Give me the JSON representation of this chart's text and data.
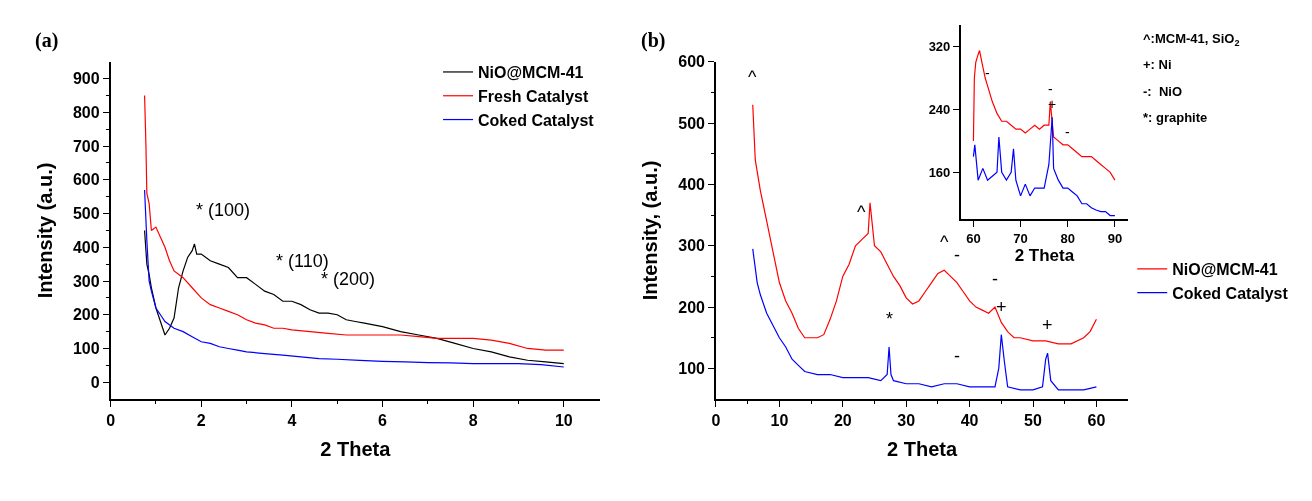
{
  "chart_data": [
    {
      "type": "line",
      "xlabel": "2 Theta",
      "ylabel": "Intensity (a.u.)",
      "xlim": [
        0,
        10.8
      ],
      "ylim": [
        -50,
        950
      ],
      "xticks": [
        0,
        2,
        4,
        6,
        8,
        10
      ],
      "yticks": [
        0,
        100,
        200,
        300,
        400,
        500,
        600,
        700,
        800,
        900
      ],
      "legend": "top right",
      "annotations": [
        "(a)",
        {
          "text": "* (100)",
          "x": 1.85,
          "y": 410
        },
        {
          "text": "* (110)",
          "x": 3.6,
          "y": 260
        },
        {
          "text": "* (200)",
          "x": 4.6,
          "y": 205
        }
      ],
      "series": [
        {
          "name": "NiO@MCM-41",
          "color": "#000000",
          "x": [
            0.75,
            0.8,
            0.85,
            0.9,
            1.0,
            1.1,
            1.2,
            1.3,
            1.4,
            1.5,
            1.6,
            1.7,
            1.8,
            1.85,
            1.9,
            2.0,
            2.2,
            2.4,
            2.6,
            2.8,
            3.0,
            3.2,
            3.4,
            3.6,
            3.8,
            4.0,
            4.2,
            4.4,
            4.6,
            4.8,
            5.0,
            5.2,
            5.4,
            5.6,
            5.8,
            6.0,
            6.4,
            6.8,
            7.2,
            7.6,
            8.0,
            8.4,
            8.8,
            9.2,
            9.6,
            10
          ],
          "values": [
            450,
            350,
            320,
            280,
            220,
            180,
            140,
            160,
            190,
            280,
            330,
            370,
            390,
            410,
            380,
            380,
            360,
            350,
            340,
            310,
            310,
            290,
            270,
            260,
            240,
            240,
            230,
            215,
            205,
            205,
            200,
            185,
            180,
            175,
            170,
            165,
            150,
            140,
            130,
            115,
            100,
            90,
            75,
            65,
            60,
            55
          ]
        },
        {
          "name": "Fresh Catalyst",
          "color": "#ff0000",
          "x": [
            0.75,
            0.78,
            0.8,
            0.85,
            0.9,
            1.0,
            1.1,
            1.2,
            1.3,
            1.4,
            1.6,
            1.8,
            2.0,
            2.2,
            2.4,
            2.6,
            2.8,
            3.0,
            3.2,
            3.4,
            3.6,
            3.8,
            4.0,
            4.4,
            4.8,
            5.2,
            5.6,
            6.0,
            6.4,
            6.8,
            7.2,
            7.6,
            8.0,
            8.4,
            8.8,
            9.2,
            9.6,
            10
          ],
          "values": [
            850,
            700,
            560,
            530,
            450,
            460,
            430,
            400,
            360,
            330,
            310,
            280,
            250,
            230,
            220,
            210,
            200,
            185,
            175,
            170,
            160,
            160,
            155,
            150,
            145,
            140,
            140,
            140,
            140,
            135,
            130,
            130,
            130,
            125,
            115,
            100,
            95,
            95
          ]
        },
        {
          "name": "Coked Catalyst",
          "color": "#0000ff",
          "x": [
            0.75,
            0.8,
            0.85,
            0.9,
            1.0,
            1.1,
            1.2,
            1.4,
            1.6,
            1.8,
            2.0,
            2.2,
            2.4,
            2.6,
            2.8,
            3.0,
            3.4,
            3.8,
            4.2,
            4.6,
            5.0,
            5.5,
            6.0,
            6.5,
            7.0,
            7.5,
            8.0,
            8.5,
            9.0,
            9.5,
            10
          ],
          "values": [
            570,
            420,
            300,
            270,
            220,
            200,
            180,
            160,
            150,
            135,
            120,
            115,
            105,
            100,
            95,
            90,
            85,
            80,
            75,
            70,
            68,
            65,
            62,
            60,
            58,
            57,
            55,
            55,
            55,
            52,
            45
          ]
        }
      ]
    },
    {
      "type": "line",
      "xlabel": "2 Theta",
      "ylabel": "Intensity, (a.u.)",
      "xlim": [
        0,
        65
      ],
      "ylim": [
        50,
        600
      ],
      "xticks": [
        0,
        10,
        20,
        30,
        40,
        50,
        60
      ],
      "yticks": [
        100,
        200,
        300,
        400,
        500,
        600
      ],
      "legend": "right",
      "annotations": [
        "(b)",
        {
          "text": "^",
          "x": 5.8,
          "y": 530
        },
        {
          "text": "^",
          "x": 23,
          "y": 310
        },
        {
          "text": "^",
          "x": 36,
          "y": 260
        },
        {
          "text": "-",
          "x": 38,
          "y": 240
        },
        {
          "text": "-",
          "x": 44,
          "y": 200
        },
        {
          "text": "+",
          "x": 45,
          "y": 155
        },
        {
          "text": "+",
          "x": 52.3,
          "y": 125
        },
        {
          "text": "*",
          "x": 27.3,
          "y": 135
        },
        {
          "text": "-",
          "x": 38,
          "y": 75
        }
      ],
      "series": [
        {
          "name": "NiO@MCM-41",
          "color": "#ff0000",
          "x": [
            5.8,
            6.2,
            7,
            8,
            9,
            10,
            11,
            12,
            13,
            14,
            15,
            16,
            17,
            18,
            19,
            20,
            21,
            22,
            23,
            24,
            24.3,
            25,
            26,
            27,
            28,
            29,
            30,
            31,
            32,
            33,
            34,
            35,
            36,
            37,
            38,
            39,
            40,
            41,
            42,
            43,
            44,
            45,
            46,
            47,
            48,
            50,
            52,
            54,
            56,
            58,
            59,
            60
          ],
          "values": [
            530,
            440,
            390,
            340,
            290,
            240,
            210,
            190,
            165,
            150,
            150,
            150,
            155,
            180,
            210,
            250,
            270,
            300,
            310,
            320,
            370,
            300,
            290,
            270,
            250,
            235,
            215,
            205,
            210,
            225,
            240,
            255,
            260,
            250,
            240,
            225,
            210,
            200,
            195,
            190,
            200,
            175,
            160,
            150,
            150,
            145,
            145,
            140,
            140,
            150,
            160,
            180
          ]
        },
        {
          "name": "Coked Catalyst",
          "color": "#0000ff",
          "x": [
            5.8,
            6.5,
            7,
            8,
            9,
            10,
            11,
            12,
            13,
            14,
            16,
            18,
            20,
            22,
            24,
            26,
            27,
            27.3,
            27.6,
            28,
            30,
            32,
            34,
            36,
            38,
            40,
            42,
            44,
            44.6,
            45,
            45.5,
            46,
            48,
            50,
            51.5,
            52,
            52.3,
            52.8,
            54,
            56,
            58,
            60
          ],
          "values": [
            295,
            240,
            220,
            190,
            170,
            150,
            135,
            115,
            105,
            95,
            90,
            90,
            85,
            85,
            85,
            80,
            90,
            135,
            90,
            80,
            75,
            75,
            70,
            75,
            75,
            70,
            70,
            70,
            100,
            155,
            110,
            70,
            65,
            65,
            70,
            115,
            125,
            80,
            65,
            65,
            65,
            70
          ]
        }
      ]
    },
    {
      "type": "line",
      "xlabel": "2 Theta",
      "xlim": [
        57.3,
        92.8
      ],
      "ylim": [
        100,
        348
      ],
      "xticks": [
        60,
        70,
        80,
        90
      ],
      "yticks": [
        160,
        240,
        320
      ],
      "annotations": [
        "^:MCM-41, SiO$_{2}$",
        "+: Ni",
        "-:  NiO",
        "*: graphite",
        {
          "text": "-",
          "x": 63,
          "y": 270
        },
        {
          "text": "-",
          "x": 76.3,
          "y": 250
        },
        {
          "text": "-",
          "x": 80,
          "y": 195
        },
        {
          "text": "+",
          "x": 76.7,
          "y": 230
        }
      ],
      "series": [
        {
          "color": "#ff0000",
          "x": [
            60,
            60.2,
            60.5,
            61,
            61.3,
            61.8,
            62.5,
            63,
            64,
            65,
            66,
            67,
            68,
            69,
            70,
            71,
            72,
            73,
            74,
            75,
            76,
            76.3,
            77,
            78,
            79,
            80,
            81,
            82,
            83,
            84,
            85,
            86,
            87,
            88,
            89,
            90
          ],
          "values": [
            200,
            280,
            300,
            310,
            315,
            300,
            280,
            270,
            250,
            235,
            225,
            225,
            220,
            215,
            215,
            210,
            215,
            220,
            215,
            220,
            220,
            250,
            205,
            200,
            195,
            195,
            190,
            185,
            180,
            180,
            180,
            175,
            170,
            165,
            160,
            150
          ]
        },
        {
          "color": "#0000ff",
          "x": [
            60,
            60.3,
            61,
            62,
            63,
            64,
            65,
            65.4,
            66,
            67,
            68,
            68.5,
            69,
            70,
            71,
            72,
            73,
            74,
            75,
            76,
            76.7,
            77,
            78,
            79,
            80,
            81,
            82,
            83,
            84,
            85,
            86,
            87,
            88,
            89,
            90
          ],
          "values": [
            180,
            195,
            150,
            165,
            150,
            155,
            160,
            205,
            160,
            150,
            160,
            190,
            150,
            130,
            145,
            130,
            140,
            140,
            140,
            170,
            230,
            165,
            150,
            140,
            140,
            135,
            130,
            120,
            120,
            115,
            112,
            110,
            110,
            105,
            105
          ]
        }
      ]
    }
  ]
}
